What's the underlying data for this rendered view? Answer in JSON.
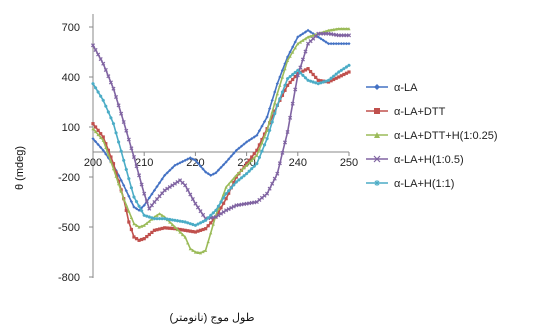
{
  "chart_data": {
    "type": "line",
    "ylabel": "θ (mdeg)",
    "xlabel": "طول موج (نانومتر)",
    "xlim": [
      200,
      250
    ],
    "ylim": [
      -800,
      800
    ],
    "xticks": [
      200,
      210,
      220,
      230,
      240,
      250
    ],
    "yticks": [
      700,
      400,
      100,
      -200,
      -500,
      -800
    ],
    "grid": false,
    "legend_position": "right",
    "series": [
      {
        "name": "α-LA",
        "color": "#4472C4",
        "marker": "diamond",
        "points": [
          [
            200,
            30
          ],
          [
            202,
            -40
          ],
          [
            204,
            -130
          ],
          [
            206,
            -250
          ],
          [
            208,
            -380
          ],
          [
            209,
            -400
          ],
          [
            210,
            -370
          ],
          [
            212,
            -280
          ],
          [
            214,
            -190
          ],
          [
            216,
            -130
          ],
          [
            218,
            -100
          ],
          [
            219,
            -85
          ],
          [
            220,
            -100
          ],
          [
            222,
            -170
          ],
          [
            223,
            -190
          ],
          [
            224,
            -175
          ],
          [
            226,
            -110
          ],
          [
            228,
            -40
          ],
          [
            230,
            10
          ],
          [
            232,
            50
          ],
          [
            234,
            160
          ],
          [
            236,
            360
          ],
          [
            238,
            520
          ],
          [
            240,
            640
          ],
          [
            242,
            680
          ],
          [
            244,
            640
          ],
          [
            246,
            600
          ],
          [
            248,
            600
          ],
          [
            250,
            600
          ]
        ]
      },
      {
        "name": "α-LA+DTT",
        "color": "#C0504D",
        "marker": "square",
        "points": [
          [
            200,
            120
          ],
          [
            202,
            40
          ],
          [
            204,
            -120
          ],
          [
            206,
            -330
          ],
          [
            207,
            -470
          ],
          [
            208,
            -560
          ],
          [
            209,
            -580
          ],
          [
            210,
            -570
          ],
          [
            212,
            -520
          ],
          [
            214,
            -505
          ],
          [
            216,
            -510
          ],
          [
            218,
            -520
          ],
          [
            220,
            -530
          ],
          [
            222,
            -510
          ],
          [
            224,
            -440
          ],
          [
            226,
            -330
          ],
          [
            228,
            -200
          ],
          [
            230,
            -120
          ],
          [
            232,
            -40
          ],
          [
            234,
            90
          ],
          [
            236,
            230
          ],
          [
            238,
            350
          ],
          [
            240,
            420
          ],
          [
            242,
            450
          ],
          [
            244,
            380
          ],
          [
            246,
            370
          ],
          [
            248,
            400
          ],
          [
            250,
            430
          ]
        ]
      },
      {
        "name": "α-LA+DTT+H(1:0.25)",
        "color": "#9BBB59",
        "marker": "triangle",
        "points": [
          [
            200,
            90
          ],
          [
            202,
            20
          ],
          [
            204,
            -150
          ],
          [
            206,
            -330
          ],
          [
            208,
            -480
          ],
          [
            209,
            -500
          ],
          [
            210,
            -490
          ],
          [
            212,
            -440
          ],
          [
            213,
            -420
          ],
          [
            214,
            -440
          ],
          [
            216,
            -500
          ],
          [
            218,
            -560
          ],
          [
            219,
            -630
          ],
          [
            220,
            -650
          ],
          [
            221,
            -655
          ],
          [
            222,
            -640
          ],
          [
            224,
            -430
          ],
          [
            226,
            -260
          ],
          [
            228,
            -190
          ],
          [
            230,
            -130
          ],
          [
            232,
            -70
          ],
          [
            234,
            80
          ],
          [
            236,
            300
          ],
          [
            238,
            500
          ],
          [
            240,
            600
          ],
          [
            242,
            640
          ],
          [
            244,
            660
          ],
          [
            246,
            680
          ],
          [
            248,
            690
          ],
          [
            250,
            690
          ]
        ]
      },
      {
        "name": "α-LA+H(1:0.5)",
        "color": "#8064A2",
        "marker": "x",
        "points": [
          [
            200,
            590
          ],
          [
            202,
            480
          ],
          [
            204,
            330
          ],
          [
            206,
            130
          ],
          [
            208,
            -80
          ],
          [
            210,
            -300
          ],
          [
            211,
            -390
          ],
          [
            212,
            -350
          ],
          [
            214,
            -280
          ],
          [
            216,
            -240
          ],
          [
            217,
            -220
          ],
          [
            218,
            -250
          ],
          [
            220,
            -360
          ],
          [
            222,
            -450
          ],
          [
            224,
            -440
          ],
          [
            226,
            -400
          ],
          [
            228,
            -370
          ],
          [
            230,
            -360
          ],
          [
            232,
            -350
          ],
          [
            234,
            -300
          ],
          [
            236,
            -180
          ],
          [
            238,
            70
          ],
          [
            240,
            410
          ],
          [
            242,
            600
          ],
          [
            244,
            660
          ],
          [
            246,
            660
          ],
          [
            248,
            650
          ],
          [
            250,
            650
          ]
        ]
      },
      {
        "name": "α-LA+H(1:1)",
        "color": "#4BACC6",
        "marker": "star",
        "points": [
          [
            200,
            360
          ],
          [
            202,
            260
          ],
          [
            204,
            120
          ],
          [
            206,
            -100
          ],
          [
            208,
            -320
          ],
          [
            210,
            -430
          ],
          [
            212,
            -450
          ],
          [
            214,
            -450
          ],
          [
            216,
            -460
          ],
          [
            218,
            -470
          ],
          [
            220,
            -490
          ],
          [
            222,
            -460
          ],
          [
            224,
            -400
          ],
          [
            226,
            -300
          ],
          [
            228,
            -230
          ],
          [
            230,
            -180
          ],
          [
            232,
            -120
          ],
          [
            234,
            30
          ],
          [
            236,
            230
          ],
          [
            238,
            390
          ],
          [
            240,
            440
          ],
          [
            242,
            380
          ],
          [
            244,
            360
          ],
          [
            246,
            380
          ],
          [
            248,
            430
          ],
          [
            250,
            470
          ]
        ]
      }
    ]
  }
}
